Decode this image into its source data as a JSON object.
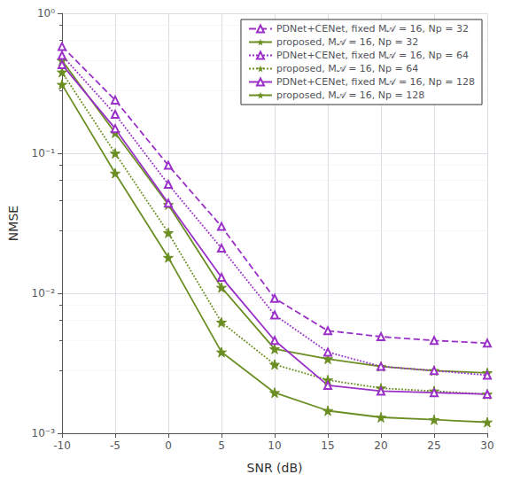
{
  "chart_data": {
    "type": "line",
    "xlabel": "SNR (dB)",
    "ylabel": "NMSE",
    "x": [
      -10,
      -5,
      0,
      5,
      10,
      15,
      20,
      25,
      30
    ],
    "series": [
      {
        "name": "PDNet+CENet, fixed M𝒜 = 16, Np = 32",
        "color": "#9B30C8",
        "marker": "triangle",
        "line_style": "dashed",
        "values": [
          0.58,
          0.24,
          0.082,
          0.03,
          0.0092,
          0.0054,
          0.0049,
          0.0046,
          0.0044
        ]
      },
      {
        "name": "proposed, M𝒜 = 16, Np = 32",
        "color": "#6B8E23",
        "marker": "star",
        "line_style": "solid",
        "values": [
          0.46,
          0.14,
          0.043,
          0.011,
          0.004,
          0.0034,
          0.003,
          0.0028,
          0.0027
        ]
      },
      {
        "name": "PDNet+CENet, fixed M𝒜 = 16, Np = 64",
        "color": "#9B30C8",
        "marker": "triangle",
        "line_style": "dotted",
        "values": [
          0.5,
          0.19,
          0.06,
          0.021,
          0.007,
          0.0038,
          0.003,
          0.0028,
          0.0026
        ]
      },
      {
        "name": "proposed, M𝒜 = 16, Np = 64",
        "color": "#6B8E23",
        "marker": "star",
        "line_style": "dotted",
        "values": [
          0.38,
          0.1,
          0.027,
          0.0062,
          0.0031,
          0.0024,
          0.0021,
          0.002,
          0.0019
        ]
      },
      {
        "name": "PDNet+CENet, fixed M𝒜 = 16, Np = 128",
        "color": "#9B30C8",
        "marker": "triangle",
        "line_style": "solid",
        "values": [
          0.43,
          0.15,
          0.044,
          0.013,
          0.0046,
          0.0022,
          0.002,
          0.00195,
          0.0019
        ]
      },
      {
        "name": "proposed, M𝒜 = 16, Np = 128",
        "color": "#6B8E23",
        "marker": "star",
        "line_style": "solid",
        "values": [
          0.31,
          0.072,
          0.018,
          0.0038,
          0.00195,
          0.00145,
          0.0013,
          0.00125,
          0.0012
        ]
      }
    ],
    "xlim": [
      -10,
      30
    ],
    "xticks": [
      -10,
      -5,
      0,
      5,
      10,
      15,
      20,
      25,
      30
    ],
    "ylim": [
      0.001,
      1.0
    ],
    "yticks": [
      {
        "value": 0.001,
        "label": "10⁻³"
      },
      {
        "value": 0.01,
        "label": "10⁻²"
      },
      {
        "value": 0.1,
        "label": "10⁻¹"
      },
      {
        "value": 1,
        "label": "10⁰"
      }
    ],
    "log": "y",
    "grid": true,
    "legend": "upper right"
  }
}
